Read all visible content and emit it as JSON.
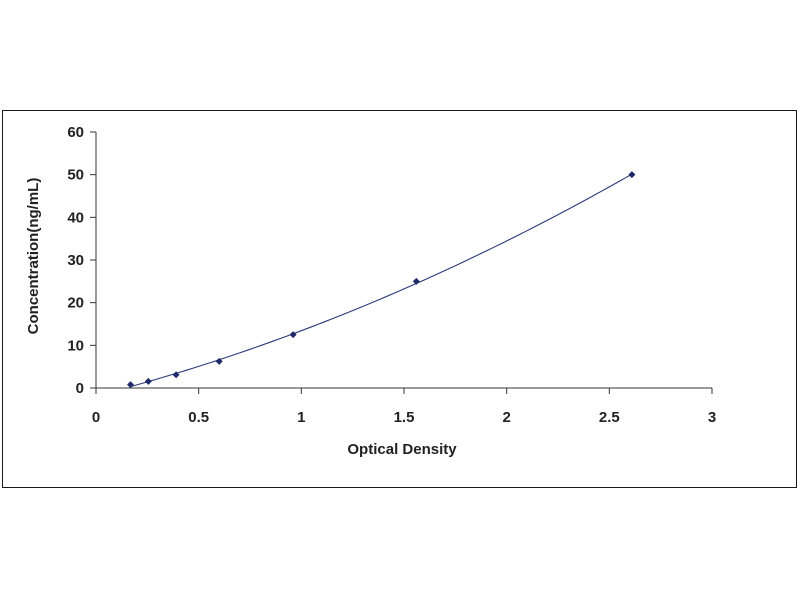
{
  "chart_data": {
    "type": "scatter",
    "title": "",
    "xlabel": "Optical Density",
    "ylabel": "Concentration(ng/mL)",
    "xlim": [
      0,
      3
    ],
    "ylim": [
      0,
      60
    ],
    "x_ticks": [
      0,
      0.5,
      1,
      1.5,
      2,
      2.5,
      3
    ],
    "x_tick_labels": [
      "0",
      "0.5",
      "1",
      "1.5",
      "2",
      "2.5",
      "3"
    ],
    "y_ticks": [
      0,
      10,
      20,
      30,
      40,
      50,
      60
    ],
    "y_tick_labels": [
      "0",
      "10",
      "20",
      "30",
      "40",
      "50",
      "60"
    ],
    "grid": false,
    "legend": "none",
    "series": [
      {
        "points": [
          {
            "x": 0.168,
            "y": 0.78
          },
          {
            "x": 0.255,
            "y": 1.56
          },
          {
            "x": 0.39,
            "y": 3.12
          },
          {
            "x": 0.6,
            "y": 6.25
          },
          {
            "x": 0.96,
            "y": 12.5
          },
          {
            "x": 1.56,
            "y": 25
          },
          {
            "x": 2.61,
            "y": 50
          }
        ],
        "trendline": "smooth fitted curve",
        "marker_color": "#1f2a6b",
        "line_color": "#2a3a7a"
      }
    ]
  }
}
